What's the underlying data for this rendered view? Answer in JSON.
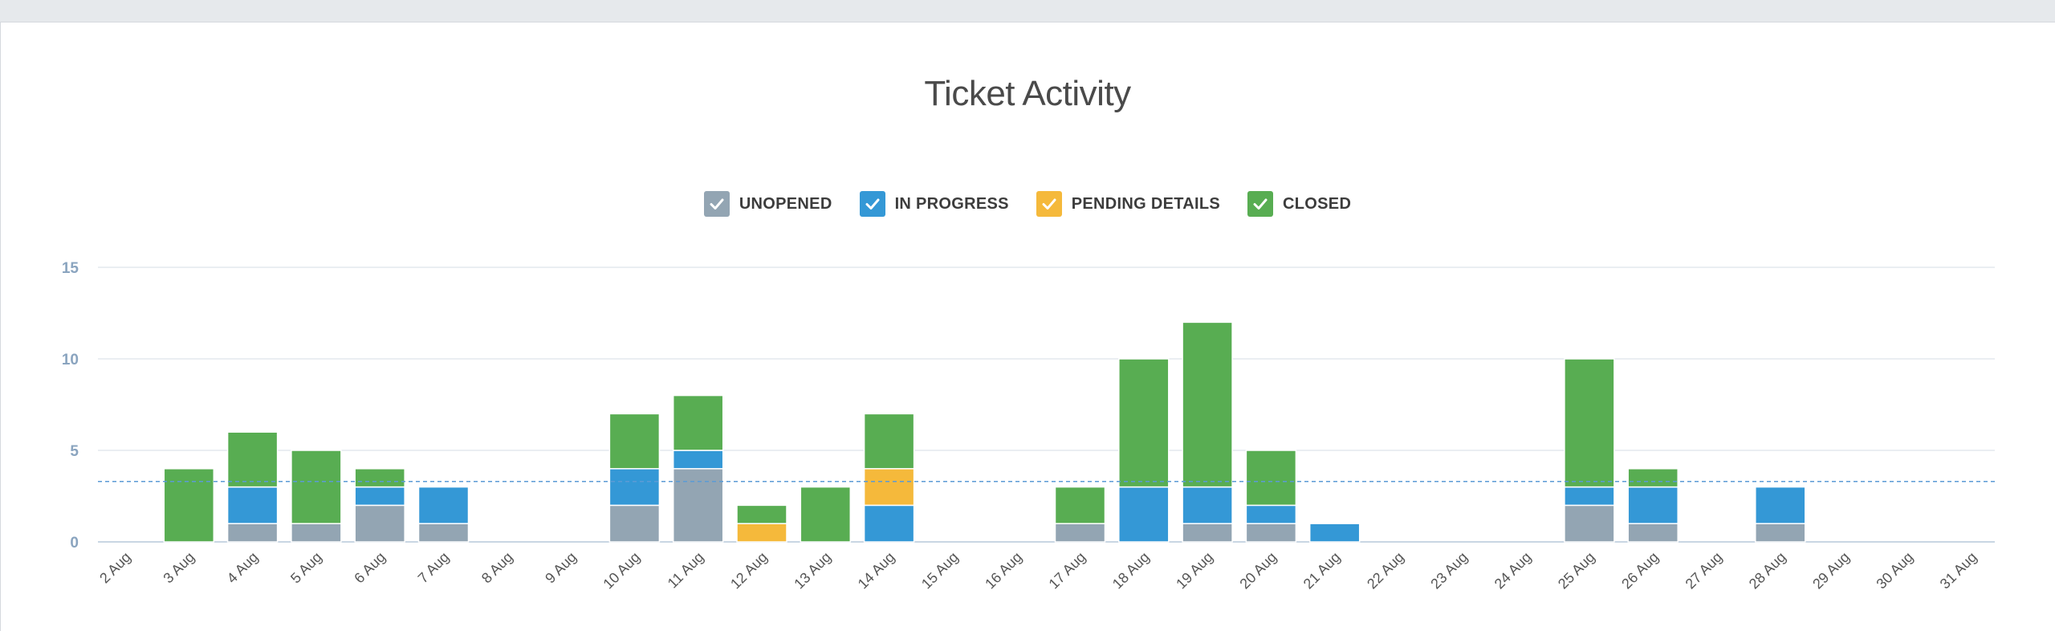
{
  "chart_data": {
    "type": "bar",
    "stacked": true,
    "title": "Ticket Activity",
    "legend_position": "top-center",
    "grid": true,
    "ylim": [
      0,
      15
    ],
    "yticks": [
      "0",
      "5",
      "10",
      "15"
    ],
    "reference_line": 3.3,
    "categories": [
      "2 Aug",
      "3 Aug",
      "4 Aug",
      "5 Aug",
      "6 Aug",
      "7 Aug",
      "8 Aug",
      "9 Aug",
      "10 Aug",
      "11 Aug",
      "12 Aug",
      "13 Aug",
      "14 Aug",
      "15 Aug",
      "16 Aug",
      "17 Aug",
      "18 Aug",
      "19 Aug",
      "20 Aug",
      "21 Aug",
      "22 Aug",
      "23 Aug",
      "24 Aug",
      "25 Aug",
      "26 Aug",
      "27 Aug",
      "28 Aug",
      "29 Aug",
      "30 Aug",
      "31 Aug"
    ],
    "series": [
      {
        "name": "UNOPENED",
        "color": "#93a5b3",
        "values": [
          0,
          0,
          1,
          1,
          2,
          1,
          0,
          0,
          2,
          4,
          0,
          0,
          0,
          0,
          0,
          1,
          0,
          1,
          1,
          0,
          0,
          0,
          0,
          2,
          1,
          0,
          1,
          0,
          0,
          0
        ]
      },
      {
        "name": "IN PROGRESS",
        "color": "#3498d6",
        "values": [
          0,
          0,
          2,
          0,
          1,
          2,
          0,
          0,
          2,
          1,
          0,
          0,
          2,
          0,
          0,
          0,
          3,
          2,
          1,
          1,
          0,
          0,
          0,
          1,
          2,
          0,
          2,
          0,
          0,
          0
        ]
      },
      {
        "name": "PENDING DETAILS",
        "color": "#f5b93b",
        "values": [
          0,
          0,
          0,
          0,
          0,
          0,
          0,
          0,
          0,
          0,
          1,
          0,
          2,
          0,
          0,
          0,
          0,
          0,
          0,
          0,
          0,
          0,
          0,
          0,
          0,
          0,
          0,
          0,
          0,
          0
        ]
      },
      {
        "name": "CLOSED",
        "color": "#58ad52",
        "values": [
          0,
          4,
          3,
          4,
          1,
          0,
          0,
          0,
          3,
          3,
          1,
          3,
          3,
          0,
          0,
          2,
          7,
          9,
          3,
          0,
          0,
          0,
          0,
          7,
          1,
          0,
          0,
          0,
          0,
          0
        ]
      }
    ]
  }
}
